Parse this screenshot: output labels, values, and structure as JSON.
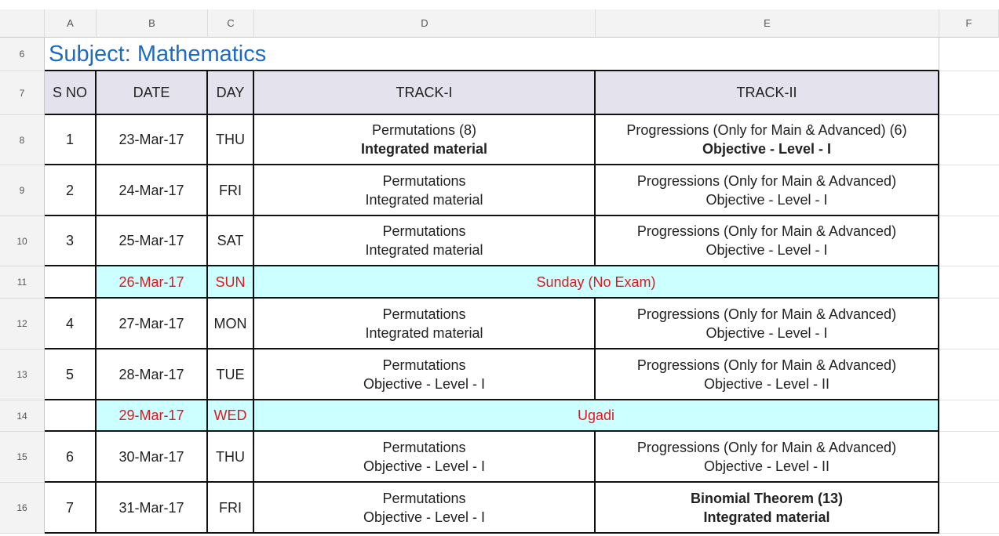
{
  "columns": [
    "A",
    "B",
    "C",
    "D",
    "E",
    "F"
  ],
  "title": "Subject: Mathematics",
  "title_row": "6",
  "header_row": "7",
  "headers": [
    "S NO",
    "DATE",
    "DAY",
    "TRACK-I",
    "TRACK-II"
  ],
  "colors": {
    "title": "#1c6bc4",
    "header_fill": "#e4e2ed",
    "holiday_fill": "#ccffff",
    "holiday_text": "#e8141c"
  },
  "rows": [
    {
      "row": "8",
      "sno": "1",
      "date": "23-Mar-17",
      "day": "THU",
      "t1": [
        "Permutations (8)",
        "Integrated material"
      ],
      "t1bold": [
        false,
        true
      ],
      "t2": [
        "Progressions (Only for Main & Advanced) (6)",
        "Objective - Level - I"
      ],
      "t2bold": [
        false,
        true
      ]
    },
    {
      "row": "9",
      "sno": "2",
      "date": "24-Mar-17",
      "day": "FRI",
      "t1": [
        "Permutations",
        "Integrated material"
      ],
      "t2": [
        "Progressions (Only for Main & Advanced)",
        "Objective - Level - I"
      ]
    },
    {
      "row": "10",
      "sno": "3",
      "date": "25-Mar-17",
      "day": "SAT",
      "t1": [
        "Permutations",
        "Integrated material"
      ],
      "t2": [
        "Progressions (Only for Main & Advanced)",
        "Objective - Level - I"
      ]
    },
    {
      "row": "11",
      "holiday": true,
      "date": "26-Mar-17",
      "day": "SUN",
      "note": "Sunday (No Exam)"
    },
    {
      "row": "12",
      "sno": "4",
      "date": "27-Mar-17",
      "day": "MON",
      "t1": [
        "Permutations",
        "Integrated material"
      ],
      "t2": [
        "Progressions (Only for Main & Advanced)",
        "Objective - Level - I"
      ]
    },
    {
      "row": "13",
      "sno": "5",
      "date": "28-Mar-17",
      "day": "TUE",
      "t1": [
        "Permutations",
        "Objective - Level - I"
      ],
      "t2": [
        "Progressions (Only for Main & Advanced)",
        "Objective - Level - II"
      ]
    },
    {
      "row": "14",
      "holiday": true,
      "date": "29-Mar-17",
      "day": "WED",
      "note": "Ugadi"
    },
    {
      "row": "15",
      "sno": "6",
      "date": "30-Mar-17",
      "day": "THU",
      "t1": [
        "Permutations",
        "Objective - Level - I"
      ],
      "t2": [
        "Progressions (Only for Main & Advanced)",
        "Objective - Level - II"
      ]
    },
    {
      "row": "16",
      "sno": "7",
      "date": "31-Mar-17",
      "day": "FRI",
      "t1": [
        "Permutations",
        "Objective - Level - I"
      ],
      "t2": [
        "Binomial Theorem (13)",
        "Integrated material"
      ],
      "t2bold": [
        true,
        true
      ]
    }
  ]
}
